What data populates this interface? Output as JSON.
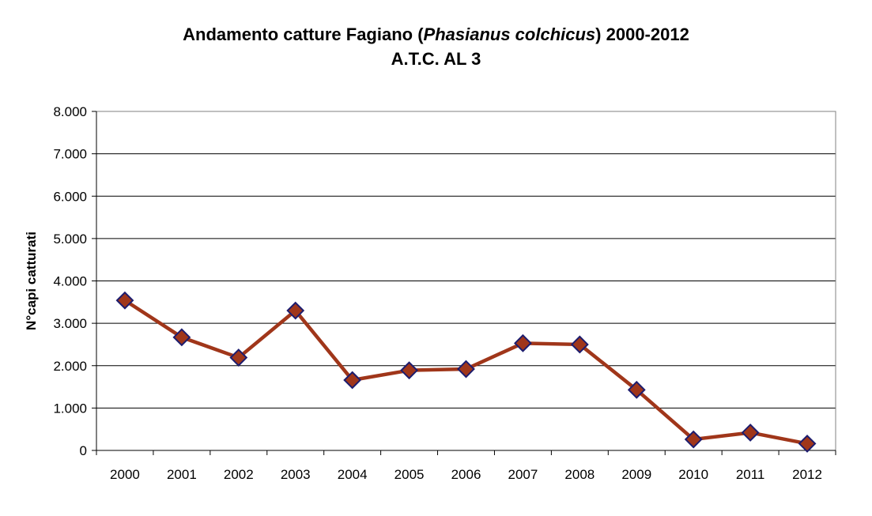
{
  "chart_data": {
    "type": "line",
    "title_prefix": "Andamento catture Fagiano (",
    "title_species": "Phasianus colchicus",
    "title_suffix": ") 2000-2012",
    "subtitle": "A.T.C. AL 3",
    "xlabel": "",
    "ylabel": "N°capi catturati",
    "categories": [
      "2000",
      "2001",
      "2002",
      "2003",
      "2004",
      "2005",
      "2006",
      "2007",
      "2008",
      "2009",
      "2010",
      "2011",
      "2012"
    ],
    "series": [
      {
        "values": [
          3540,
          2670,
          2190,
          3300,
          1660,
          1890,
          1920,
          2530,
          2500,
          1430,
          260,
          420,
          160
        ]
      }
    ],
    "y_ticks": [
      "0",
      "1.000",
      "2.000",
      "3.000",
      "4.000",
      "5.000",
      "6.000",
      "7.000",
      "8.000"
    ],
    "ylim": [
      0,
      8000
    ],
    "grid": "horizontal",
    "legend": "none",
    "colors": {
      "line": "#a0361a",
      "marker_fill": "#a0361a",
      "marker_stroke": "#1c1c6e",
      "grid": "#000000",
      "frame": "#808080"
    }
  }
}
